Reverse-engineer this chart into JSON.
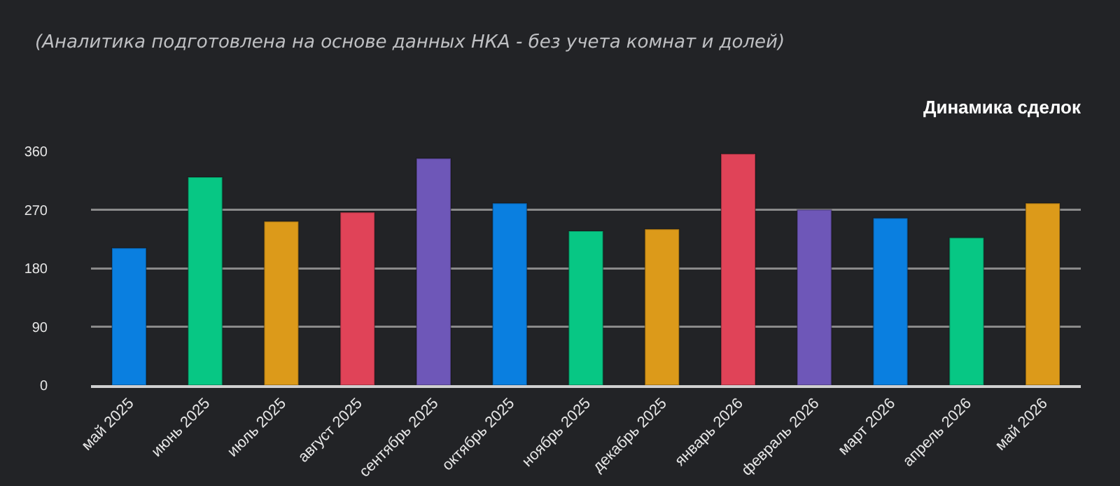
{
  "chart_data": {
    "type": "bar",
    "title": "Динамика сделок",
    "subtitle": "(Аналитика подготовлена на основе данных НКА - без учета комнат и долей)",
    "categories": [
      "май 2025",
      "июнь 2025",
      "июль 2025",
      "август 2025",
      "сентябрь 2025",
      "октябрь 2025",
      "ноябрь 2025",
      "декабрь 2025",
      "январь 2026",
      "февраль 2026",
      "март 2026",
      "апрель 2026",
      "май 2026"
    ],
    "values": [
      211,
      320,
      252,
      266,
      349,
      280,
      237,
      240,
      356,
      270,
      257,
      227,
      280
    ],
    "colors": [
      "#0a7fe0",
      "#07c784",
      "#dc9a1a",
      "#e04358",
      "#6e57b8",
      "#0a7fe0",
      "#07c784",
      "#dc9a1a",
      "#e04358",
      "#6e57b8",
      "#0a7fe0",
      "#07c784",
      "#dc9a1a"
    ],
    "ylim": [
      0,
      360
    ],
    "yticks": [
      0,
      90,
      180,
      270,
      360
    ],
    "grid": "y",
    "legend": false
  }
}
